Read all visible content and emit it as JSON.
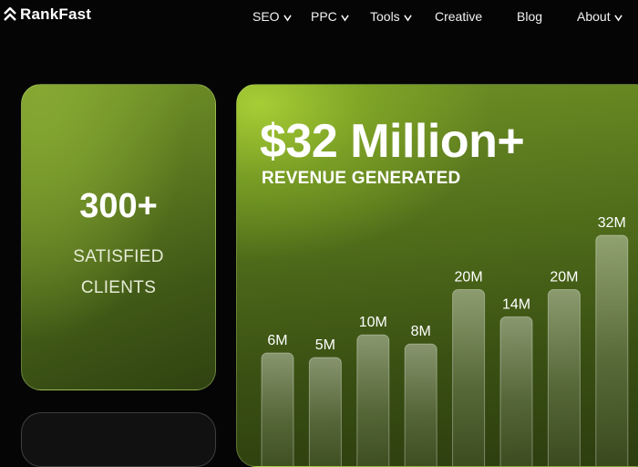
{
  "brand": {
    "name": "RankFast",
    "icon": "chevron-logo-icon"
  },
  "nav": {
    "items": [
      {
        "label": "SEO",
        "dropdown": true
      },
      {
        "label": "PPC",
        "dropdown": true
      },
      {
        "label": "Tools",
        "dropdown": true
      },
      {
        "label": "Creative",
        "dropdown": false
      },
      {
        "label": "Blog",
        "dropdown": false
      },
      {
        "label": "About",
        "dropdown": true
      }
    ]
  },
  "clients": {
    "value": "300+",
    "label_line1": "SATISFIED",
    "label_line2": "CLIENTS"
  },
  "revenue": {
    "value": "$32 Million+",
    "label": "REVENUE GENERATED"
  },
  "colors": {
    "accent": "#a7cd35",
    "card_dark": "#3a5013",
    "background": "#050505"
  },
  "chart_data": {
    "type": "bar",
    "categories": [
      "",
      "",
      "",
      "",
      "",
      "",
      "",
      ""
    ],
    "values": [
      6,
      5,
      10,
      8,
      20,
      14,
      20,
      32
    ],
    "labels": [
      "6M",
      "5M",
      "10M",
      "8M",
      "20M",
      "14M",
      "20M",
      "32M"
    ],
    "unit": "M",
    "grid": false
  }
}
